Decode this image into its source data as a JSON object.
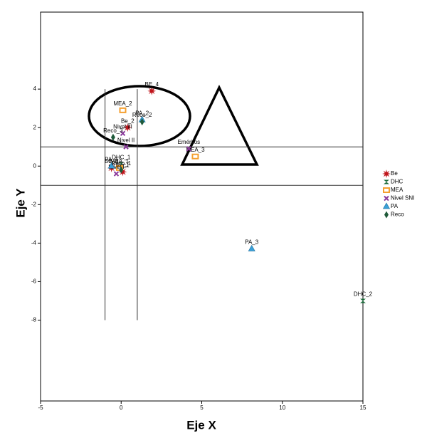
{
  "chart_data": {
    "type": "scatter",
    "x_label": "Eje X",
    "y_label": "Eje Y",
    "xlim": [
      -5,
      15
    ],
    "ylim": [
      -12.2,
      8
    ],
    "xticks": [
      -5,
      0,
      5,
      10,
      15
    ],
    "yticks": [
      4,
      2,
      0,
      -2,
      -4,
      -6,
      -8
    ],
    "hlines": [
      1,
      -1
    ],
    "vlines": [
      {
        "x": -1,
        "y": [
          -8,
          4
        ]
      },
      {
        "x": 1,
        "y": [
          -8,
          4
        ]
      }
    ],
    "series": [
      {
        "name": "Be",
        "color": "#c0161c",
        "x": [
          1.9,
          0.4,
          -0.6,
          0.1
        ],
        "values": [
          3.9,
          2.0,
          -0.1,
          -0.3
        ],
        "labels": [
          "BE_4",
          "Be_2",
          "BE_3",
          "Be_1"
        ]
      },
      {
        "name": "DHC",
        "color": "#1a6b3a",
        "x": [
          0.0,
          15.0
        ],
        "values": [
          0.1,
          -7.0
        ],
        "labels": [
          "DHC_1",
          "DHC_2"
        ]
      },
      {
        "name": "MEA",
        "color": "#f5a030",
        "x": [
          0.1,
          4.6,
          -0.1
        ],
        "values": [
          2.9,
          0.5,
          -0.1
        ],
        "labels": [
          "MEA_2",
          "MEA_3",
          "MEA_1"
        ]
      },
      {
        "name": "Nivel SNI",
        "color": "#8b3a9b",
        "x": [
          0.1,
          0.3,
          -0.3,
          4.2
        ],
        "values": [
          1.7,
          1.0,
          -0.4,
          0.9
        ],
        "labels": [
          "Nivel III",
          "Nivel II",
          "Nivel I",
          "Eméritos"
        ]
      },
      {
        "name": "PA",
        "color": "#3aa0d8",
        "x": [
          1.3,
          -0.6,
          8.1
        ],
        "values": [
          2.4,
          0.0,
          -4.3
        ],
        "labels": [
          "PA_2",
          "PA_1",
          "PA_3"
        ]
      },
      {
        "name": "Reco",
        "color": "#1f5a3a",
        "x": [
          1.3,
          -0.5,
          0.0
        ],
        "values": [
          2.3,
          1.5,
          -0.2
        ],
        "labels": [
          "Reco_2",
          "Reco_3",
          "Reco_1"
        ]
      }
    ]
  }
}
